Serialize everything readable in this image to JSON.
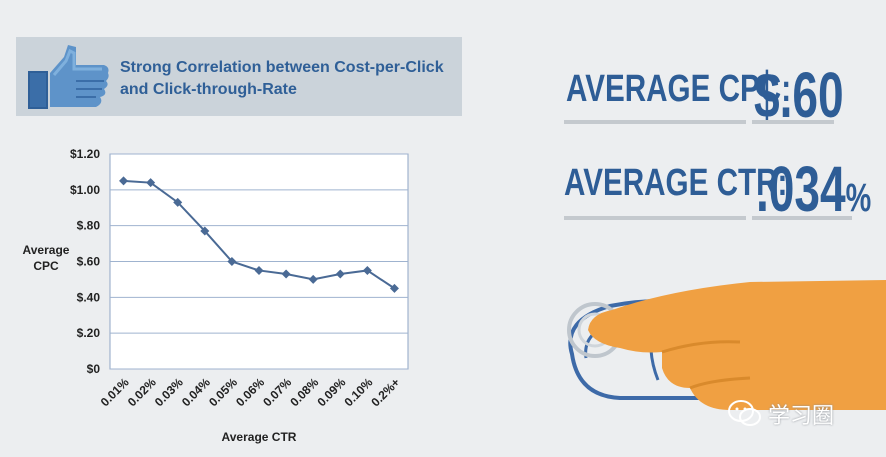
{
  "header": {
    "title_line1": "Strong Correlation between Cost-per-Click",
    "title_line2": "and Click-through-Rate",
    "icon": "thumbs-up-icon"
  },
  "stats": {
    "cpc_label": "AVERAGE CPC:",
    "cpc_value": "$.60",
    "ctr_label": "AVERAGE CTR:",
    "ctr_value": ".034",
    "ctr_unit": "%"
  },
  "watermark": {
    "text": "学习圈",
    "icon": "wechat-icon"
  },
  "colors": {
    "accent": "#2e5d96",
    "line": "#4a6a95",
    "hand": "#f0a042",
    "mouse_outline": "#3d6aa8",
    "background": "#eceef0"
  },
  "chart_data": {
    "type": "line",
    "xlabel": "Average CTR",
    "ylabel": "Average CPC",
    "ylim": [
      0,
      1.2
    ],
    "yticks": [
      "$0",
      "$.20",
      "$.40",
      "$.60",
      "$.80",
      "$1.00",
      "$1.20"
    ],
    "categories": [
      "0.01%",
      "0.02%",
      "0.03%",
      "0.04%",
      "0.05%",
      "0.06%",
      "0.07%",
      "0.08%",
      "0.09%",
      "0.10%",
      "0.2%+"
    ],
    "values": [
      1.05,
      1.04,
      0.93,
      0.77,
      0.6,
      0.55,
      0.53,
      0.5,
      0.53,
      0.55,
      0.45
    ],
    "grid": true,
    "marker": "diamond"
  }
}
